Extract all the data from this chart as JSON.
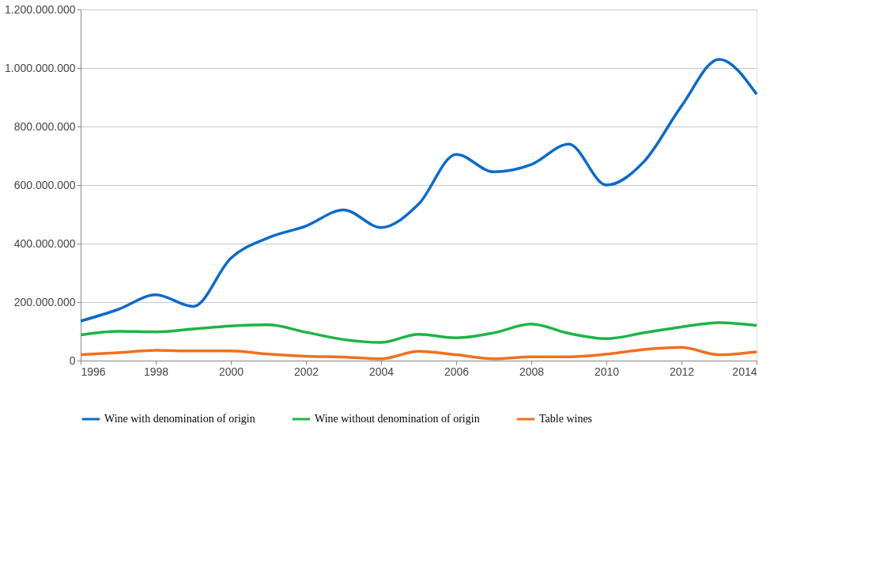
{
  "chart_data": {
    "type": "line",
    "x": [
      1996,
      1997,
      1998,
      1999,
      2000,
      2001,
      2002,
      2003,
      2004,
      2005,
      2006,
      2007,
      2008,
      2009,
      2010,
      2011,
      2012,
      2013,
      2014
    ],
    "series": [
      {
        "name": "Wine with denomination of origin",
        "color": "#0a6acb",
        "values": [
          135000000,
          175000000,
          225000000,
          185000000,
          350000000,
          420000000,
          460000000,
          515000000,
          455000000,
          535000000,
          705000000,
          645000000,
          670000000,
          740000000,
          600000000,
          680000000,
          870000000,
          1030000000,
          910000000
        ]
      },
      {
        "name": "Wine without denomination of origin",
        "color": "#1db446",
        "values": [
          88000000,
          100000000,
          98000000,
          108000000,
          118000000,
          122000000,
          97000000,
          72000000,
          62000000,
          90000000,
          78000000,
          95000000,
          125000000,
          93000000,
          75000000,
          95000000,
          115000000,
          130000000,
          120000000
        ]
      },
      {
        "name": "Table wines",
        "color": "#f0701d",
        "values": [
          20000000,
          27000000,
          35000000,
          33000000,
          33000000,
          22000000,
          15000000,
          12000000,
          6000000,
          32000000,
          20000000,
          6000000,
          13000000,
          13000000,
          22000000,
          38000000,
          45000000,
          20000000,
          30000000
        ]
      }
    ],
    "xlim": [
      1996,
      2014
    ],
    "xticks": [
      1996,
      1998,
      2000,
      2002,
      2004,
      2006,
      2008,
      2010,
      2012,
      2014
    ],
    "ylim": [
      0,
      1200000000
    ],
    "yticks": [
      {
        "value": 0,
        "label": "0"
      },
      {
        "value": 200000000,
        "label": "200.000.000"
      },
      {
        "value": 400000000,
        "label": "400.000.000"
      },
      {
        "value": 600000000,
        "label": "600.000.000"
      },
      {
        "value": 800000000,
        "label": "800.000.000"
      },
      {
        "value": 1000000000,
        "label": "1.000.000.000"
      },
      {
        "value": 1200000000,
        "label": "1.200.000.000"
      }
    ],
    "grid": "y",
    "legend": "bottom",
    "marker": "none",
    "line_style": "solid"
  }
}
